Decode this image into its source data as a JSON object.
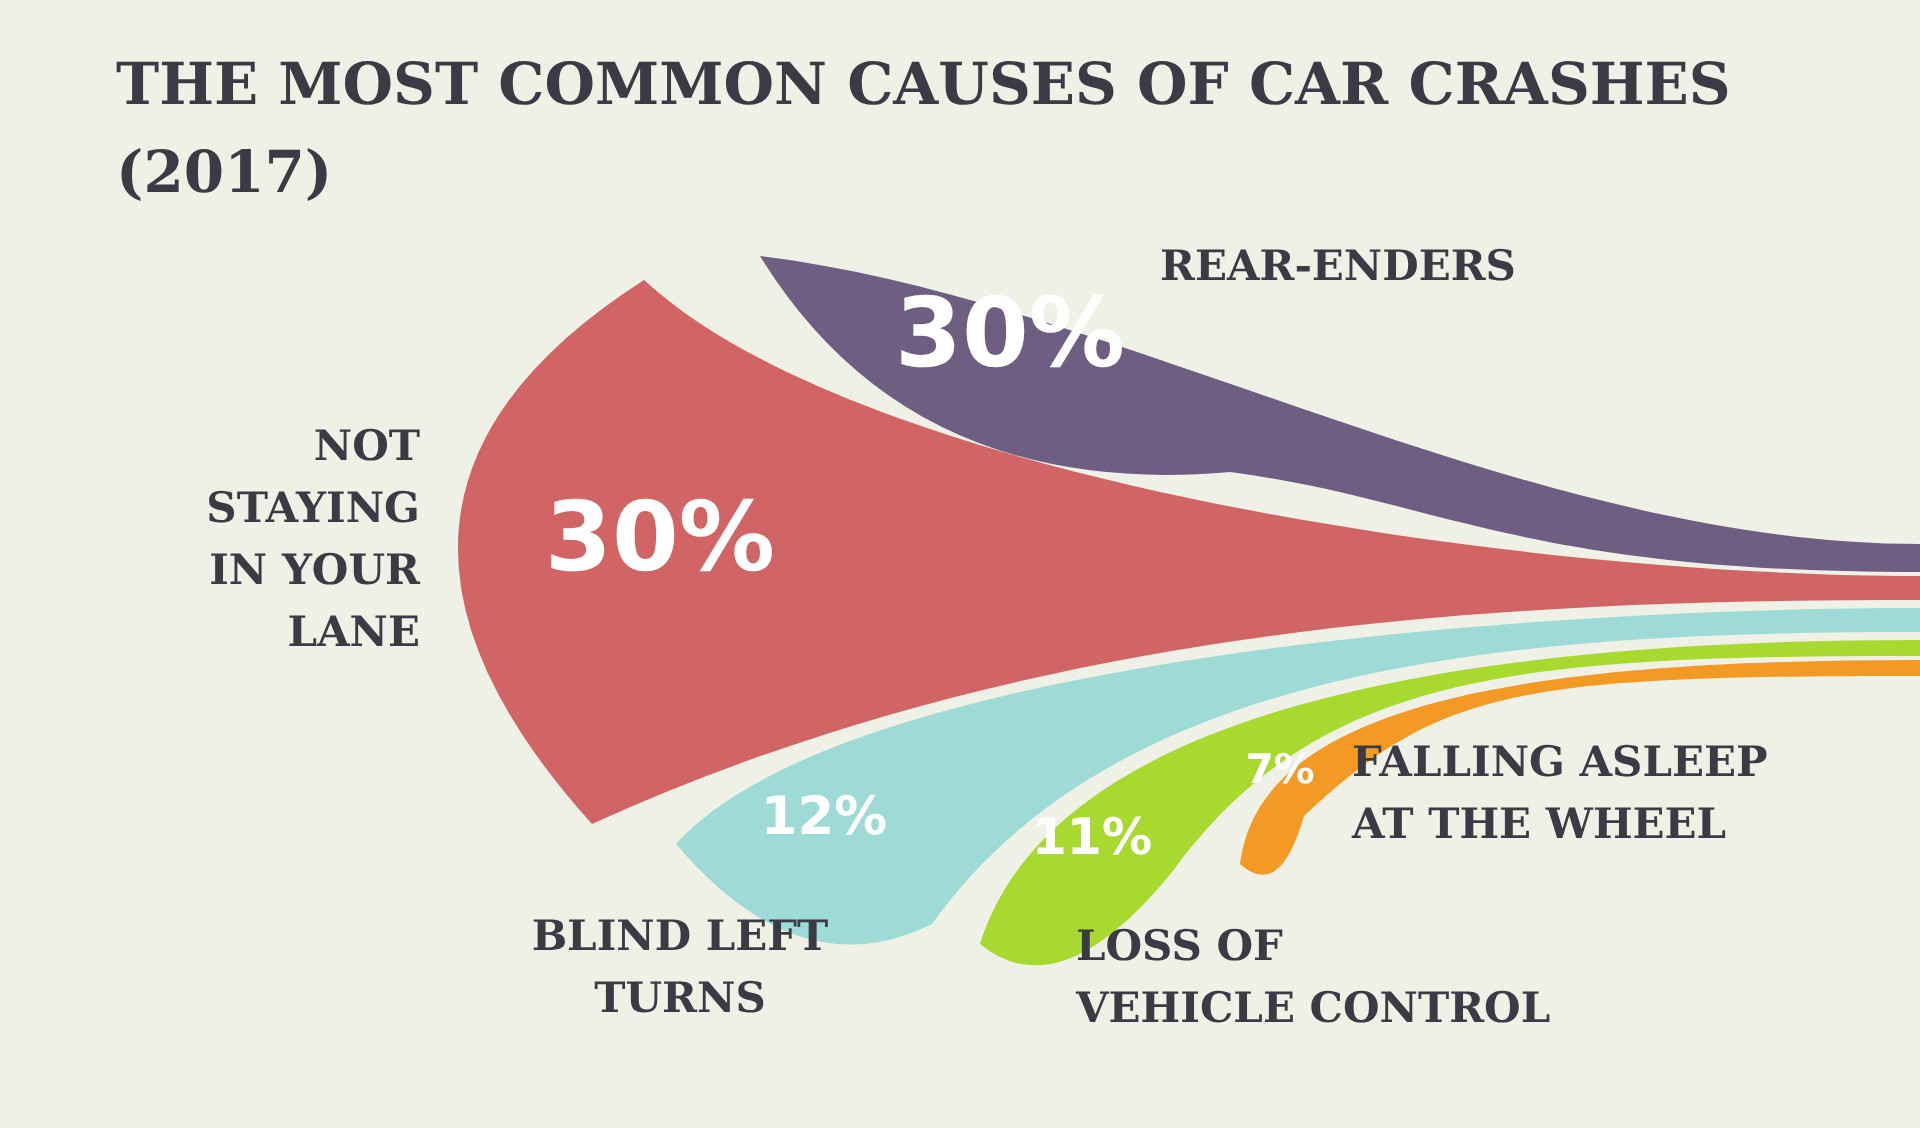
{
  "chart_data": {
    "type": "other",
    "title": "THE MOST COMMON CAUSES OF CAR CRASHES (2017)",
    "categories": [
      "REAR-ENDERS",
      "NOT\nSTAYING\nIN YOUR\nLANE",
      "BLIND LEFT\nTURNS",
      "LOSS OF\nVEHICLE CONTROL",
      "FALLING ASLEEP\nAT THE WHEEL"
    ],
    "values": [
      30,
      30,
      12,
      11,
      7
    ],
    "value_labels": [
      "30%",
      "30%",
      "12%",
      "11%",
      "7%"
    ],
    "colors": [
      "#6e5e82",
      "#d16464",
      "#9edbd6",
      "#a8d92e",
      "#f39a24"
    ]
  }
}
